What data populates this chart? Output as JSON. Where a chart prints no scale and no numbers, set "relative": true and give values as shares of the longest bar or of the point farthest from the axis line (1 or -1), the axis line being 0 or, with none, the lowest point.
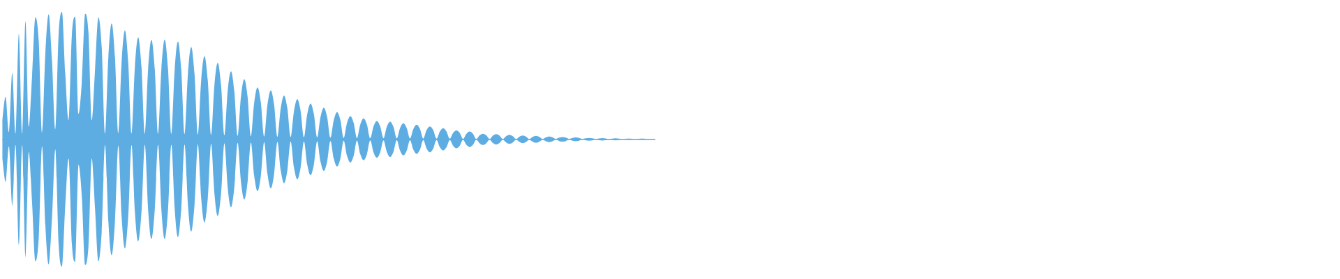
{
  "chart_data": {
    "type": "area",
    "relative": true,
    "categories": [
      null,
      null,
      null,
      null,
      null,
      null,
      null,
      null,
      null,
      null,
      null,
      null,
      null,
      null,
      null,
      null,
      null,
      null,
      null,
      null,
      null,
      null,
      null,
      null,
      null,
      null,
      null,
      null,
      null,
      null,
      null,
      null,
      null,
      null,
      null,
      null,
      null,
      null,
      null,
      null,
      null,
      null,
      null,
      null,
      null,
      null,
      null,
      null,
      null,
      null,
      null,
      null,
      null,
      null,
      null,
      null,
      null,
      null,
      null,
      null,
      null,
      null,
      null,
      null,
      null,
      null,
      null,
      null,
      null,
      null,
      null,
      null,
      null,
      null,
      null,
      null,
      null,
      null,
      null,
      null,
      null,
      null,
      null,
      null,
      null,
      null,
      null,
      null,
      null,
      null,
      null,
      null,
      null,
      null,
      null,
      null,
      null,
      null,
      null,
      null,
      null,
      null,
      null,
      null,
      null,
      null,
      null,
      null,
      null,
      null,
      null,
      null,
      null,
      null,
      null,
      null,
      null,
      null,
      null,
      null,
      null,
      null,
      null,
      null,
      null,
      null,
      null,
      null,
      null,
      null,
      null,
      null,
      null,
      null,
      null,
      null,
      null,
      null,
      null,
      null,
      null,
      null,
      null,
      null,
      null,
      null,
      null,
      null,
      null,
      null,
      null,
      null,
      null,
      null,
      null,
      null,
      null,
      null,
      null,
      null,
      null,
      null,
      null,
      null,
      null,
      null,
      null,
      null,
      null,
      null,
      null,
      null,
      null,
      null,
      null,
      null,
      null,
      null,
      null,
      null,
      null,
      null,
      null,
      null,
      null,
      null,
      null,
      null,
      null,
      null,
      null,
      null,
      null,
      null,
      null,
      null,
      null,
      null
    ],
    "series": [
      {
        "color": "#5dade2",
        "values": [
          0.15,
          0.334,
          0.055,
          0.521,
          0.044,
          0.827,
          0.044,
          0.926,
          0.1,
          0.5,
          0.957,
          0.773,
          0.055,
          0.674,
          0.981,
          0.619,
          0.08,
          0.822,
          1,
          0.521,
          0.15,
          0.82,
          0.962,
          0.2,
          0.45,
          0.985,
          0.838,
          0.15,
          0.553,
          0.957,
          0.723,
          0.044,
          0.643,
          0.91,
          0.643,
          0.049,
          0.604,
          0.855,
          0.604,
          0.045,
          0.566,
          0.8,
          0.566,
          0.043,
          0.552,
          0.781,
          0.552,
          0.043,
          0.553,
          0.782,
          0.553,
          0.043,
          0.542,
          0.767,
          0.542,
          0.041,
          0.511,
          0.723,
          0.511,
          0.038,
          0.461,
          0.652,
          0.461,
          0.034,
          0.425,
          0.601,
          0.425,
          0.031,
          0.378,
          0.534,
          0.378,
          0.028,
          0.334,
          0.472,
          0.334,
          0.024,
          0.288,
          0.407,
          0.288,
          0.022,
          0.272,
          0.385,
          0.272,
          0.02,
          0.243,
          0.344,
          0.243,
          0.018,
          0.222,
          0.314,
          0.222,
          0.016,
          0.198,
          0.281,
          0.198,
          0.015,
          0.175,
          0.248,
          0.175,
          0.013,
          0.151,
          0.214,
          0.151,
          0.011,
          0.129,
          0.182,
          0.129,
          0.009,
          0.116,
          0.164,
          0.116,
          0.008,
          0.102,
          0.144,
          0.102,
          0.008,
          0.098,
          0.138,
          0.098,
          0.007,
          0.089,
          0.126,
          0.089,
          0.007,
          0.081,
          0.115,
          0.081,
          0.006,
          0.072,
          0.101,
          0.072,
          0.005,
          0.062,
          0.088,
          0.062,
          0.005,
          0.05,
          0.07,
          0.05,
          0.004,
          0.043,
          0.061,
          0.043,
          0.003,
          0.031,
          0.044,
          0.031,
          0.003,
          0.029,
          0.041,
          0.029,
          0.003,
          0.025,
          0.036,
          0.025,
          0.003,
          0.021,
          0.03,
          0.021,
          0.003,
          0.019,
          0.027,
          0.019,
          0.003,
          0.015,
          0.022,
          0.015,
          0.003,
          0.013,
          0.018,
          0.013,
          0.003,
          0.011,
          0.015,
          0.011,
          0.003,
          0.008,
          0.011,
          0.008,
          0.003,
          0.007,
          0.01,
          0.007,
          0.003,
          0.006,
          0.008,
          0.006,
          0.003,
          0.004,
          0.005,
          0.004,
          0.003,
          0.004,
          0.005,
          0.004,
          0.003,
          0.003,
          0.003
        ]
      },
      {
        "color": "#5dade2",
        "values": [
          -0.15,
          -0.334,
          -0.055,
          -0.521,
          -0.044,
          -0.827,
          -0.044,
          -0.926,
          -0.1,
          -0.5,
          -0.957,
          -0.773,
          -0.055,
          -0.674,
          -0.981,
          -0.619,
          -0.08,
          -0.822,
          -1,
          -0.521,
          -0.15,
          -0.82,
          -0.962,
          -0.2,
          -0.45,
          -0.985,
          -0.838,
          -0.15,
          -0.553,
          -0.957,
          -0.723,
          -0.044,
          -0.643,
          -0.91,
          -0.643,
          -0.049,
          -0.604,
          -0.855,
          -0.604,
          -0.045,
          -0.566,
          -0.8,
          -0.566,
          -0.043,
          -0.552,
          -0.781,
          -0.552,
          -0.043,
          -0.553,
          -0.782,
          -0.553,
          -0.043,
          -0.542,
          -0.767,
          -0.542,
          -0.041,
          -0.511,
          -0.723,
          -0.511,
          -0.038,
          -0.461,
          -0.652,
          -0.461,
          -0.034,
          -0.425,
          -0.601,
          -0.425,
          -0.031,
          -0.378,
          -0.534,
          -0.378,
          -0.028,
          -0.334,
          -0.472,
          -0.334,
          -0.024,
          -0.288,
          -0.407,
          -0.288,
          -0.022,
          -0.272,
          -0.385,
          -0.272,
          -0.02,
          -0.243,
          -0.344,
          -0.243,
          -0.018,
          -0.222,
          -0.314,
          -0.222,
          -0.016,
          -0.198,
          -0.281,
          -0.198,
          -0.015,
          -0.175,
          -0.248,
          -0.175,
          -0.013,
          -0.151,
          -0.214,
          -0.151,
          -0.011,
          -0.129,
          -0.182,
          -0.129,
          -0.009,
          -0.116,
          -0.164,
          -0.116,
          -0.008,
          -0.102,
          -0.144,
          -0.102,
          -0.008,
          -0.098,
          -0.138,
          -0.098,
          -0.007,
          -0.089,
          -0.126,
          -0.089,
          -0.007,
          -0.081,
          -0.115,
          -0.081,
          -0.006,
          -0.072,
          -0.101,
          -0.072,
          -0.005,
          -0.062,
          -0.088,
          -0.062,
          -0.005,
          -0.05,
          -0.07,
          -0.05,
          -0.004,
          -0.043,
          -0.061,
          -0.043,
          -0.003,
          -0.031,
          -0.044,
          -0.031,
          -0.003,
          -0.029,
          -0.041,
          -0.029,
          -0.003,
          -0.025,
          -0.036,
          -0.025,
          -0.003,
          -0.021,
          -0.03,
          -0.021,
          -0.003,
          -0.019,
          -0.027,
          -0.019,
          -0.003,
          -0.015,
          -0.022,
          -0.015,
          -0.003,
          -0.013,
          -0.018,
          -0.013,
          -0.003,
          -0.011,
          -0.015,
          -0.011,
          -0.003,
          -0.008,
          -0.011,
          -0.008,
          -0.003,
          -0.007,
          -0.01,
          -0.007,
          -0.003,
          -0.006,
          -0.008,
          -0.006,
          -0.003,
          -0.004,
          -0.005,
          -0.004,
          -0.003,
          -0.004,
          -0.005,
          -0.004,
          -0.003,
          -0.003,
          -0.003
        ]
      }
    ],
    "ref_lines": [
      {
        "axis": "y",
        "value": 0,
        "color": "#5dade2"
      }
    ]
  }
}
